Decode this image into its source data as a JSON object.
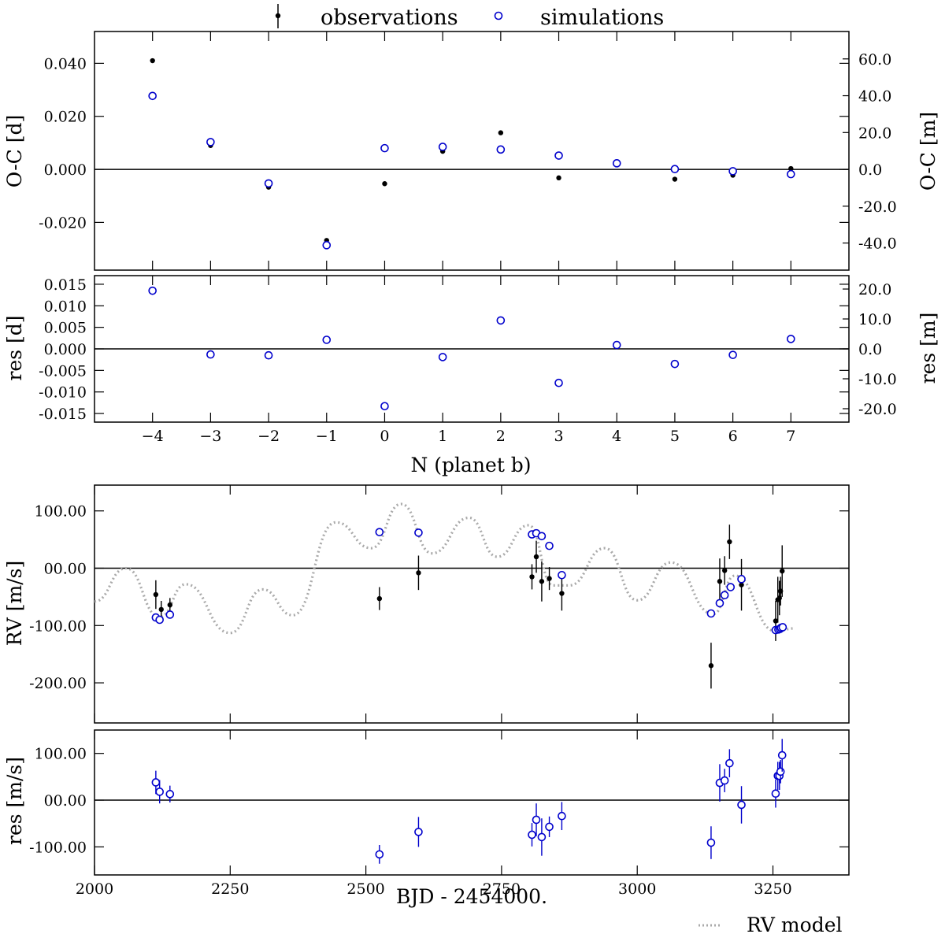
{
  "legend": {
    "observations": "observations",
    "simulations": "simulations",
    "rv_model": "RV model"
  },
  "colors": {
    "observations": "#000000",
    "simulations": "#0000cc",
    "model": "#aaaaaa"
  },
  "chart_data": [
    {
      "type": "scatter",
      "panel": "oc",
      "ylabel": "O-C [d]",
      "ylabel_right": "O-C [m]",
      "xlim": [
        -5,
        8
      ],
      "ylim": [
        -0.038,
        0.052
      ],
      "yticks": [
        -0.02,
        0.0,
        0.02,
        0.04
      ],
      "ytick_labels": [
        "-0.020",
        "0.000",
        "0.020",
        "0.040"
      ],
      "yticks_right": [
        -40,
        -20,
        0,
        20,
        40,
        60
      ],
      "ytick_right_labels": [
        "-40.0",
        "-20.0",
        "0.0",
        "20.0",
        "40.0",
        "60.0"
      ],
      "x": [
        -4,
        -3,
        -2,
        -1,
        0,
        1,
        2,
        3,
        4,
        5,
        6,
        7
      ],
      "series": [
        {
          "name": "observations",
          "values": [
            0.041,
            0.009,
            -0.0067,
            -0.0268,
            -0.0054,
            0.0068,
            0.0138,
            -0.0032,
            0.0027,
            -0.0037,
            -0.0022,
            0.0003
          ]
        },
        {
          "name": "simulations",
          "values": [
            0.0277,
            0.0103,
            -0.0053,
            -0.0286,
            0.008,
            0.0085,
            0.0075,
            0.0052,
            0.0023,
            0.0001,
            -0.0007,
            -0.0018
          ]
        }
      ]
    },
    {
      "type": "scatter",
      "panel": "oc_res",
      "ylabel": "res [d]",
      "ylabel_right": "res [m]",
      "xlabel": "N (planet b)",
      "xlim": [
        -5,
        8
      ],
      "ylim": [
        -0.017,
        0.017
      ],
      "xticks": [
        -4,
        -3,
        -2,
        -1,
        0,
        1,
        2,
        3,
        4,
        5,
        6,
        7
      ],
      "xtick_labels": [
        "−4",
        "−3",
        "−2",
        "−1",
        "0",
        "1",
        "2",
        "3",
        "4",
        "5",
        "6",
        "7"
      ],
      "yticks": [
        -0.015,
        -0.01,
        -0.005,
        0.0,
        0.005,
        0.01,
        0.015
      ],
      "ytick_labels": [
        "-0.015",
        "-0.010",
        "-0.005",
        "0.000",
        "0.005",
        "0.010",
        "0.015"
      ],
      "yticks_right": [
        -20,
        -10,
        0,
        10,
        20
      ],
      "ytick_right_labels": [
        "-20.0",
        "-10.0",
        "0.0",
        "10.0",
        "20.0"
      ],
      "x": [
        -4,
        -3,
        -2,
        -1,
        0,
        1,
        2,
        3,
        4,
        5,
        6,
        7
      ],
      "values": [
        0.0135,
        -0.0013,
        -0.0015,
        0.0021,
        -0.0133,
        -0.0019,
        0.0066,
        -0.0079,
        0.0009,
        -0.0035,
        -0.0014,
        0.0023
      ]
    },
    {
      "type": "scatter",
      "panel": "rv",
      "ylabel": "RV [m/s]",
      "xlim": [
        2000,
        3390
      ],
      "ylim": [
        -270,
        145
      ],
      "yticks": [
        -200,
        -100,
        0,
        100
      ],
      "ytick_labels": [
        "-200.00",
        "-100.00",
        "00.00",
        "100.00"
      ],
      "model": {
        "name": "RV model",
        "x": [
          2000,
          2058,
          2120,
          2168,
          2250,
          2310,
          2365,
          2445,
          2510,
          2565,
          2622,
          2690,
          2742,
          2800,
          2845,
          2875,
          2940,
          3000,
          3062,
          3140,
          3180,
          3255,
          3290
        ],
        "y": [
          -58,
          0,
          -85,
          -28,
          -113,
          -37,
          -82,
          80,
          35,
          112,
          26,
          88,
          20,
          75,
          -30,
          -30,
          35,
          -56,
          10,
          -80,
          -13,
          -110,
          -105
        ]
      },
      "observations": {
        "x": [
          2113,
          2123,
          2139,
          2525,
          2597,
          2806,
          2814,
          2824,
          2838,
          2861,
          3136,
          3152,
          3161,
          3170,
          3192,
          3255,
          3259,
          3262,
          3264,
          3267
        ],
        "y": [
          -46,
          -72,
          -64,
          -53,
          -8,
          -15,
          20,
          -23,
          -18,
          -44,
          -170,
          -23,
          -4,
          46,
          -29,
          -92,
          -55,
          -52,
          -40,
          -5
        ],
        "err": [
          25,
          15,
          12,
          20,
          30,
          22,
          28,
          35,
          20,
          30,
          40,
          40,
          25,
          30,
          45,
          35,
          40,
          30,
          25,
          45
        ]
      },
      "simulations": {
        "x": [
          2113,
          2120,
          2139,
          2525,
          2597,
          2806,
          2814,
          2824,
          2838,
          2861,
          3136,
          3152,
          3161,
          3172,
          3192,
          3255,
          3260,
          3263,
          3265,
          3268
        ],
        "y": [
          -86,
          -90,
          -81,
          63,
          62,
          59,
          61,
          56,
          39,
          -12,
          -79,
          -61,
          -47,
          -33,
          -19,
          -108,
          -107,
          -106,
          -104,
          -103
        ]
      }
    },
    {
      "type": "scatter",
      "panel": "rv_res",
      "ylabel": "res [m/s]",
      "xlabel": "BJD - 2454000.",
      "xlim": [
        2000,
        3390
      ],
      "ylim": [
        -160,
        150
      ],
      "xticks": [
        2000,
        2250,
        2500,
        2750,
        3000,
        3250
      ],
      "xtick_labels": [
        "2000",
        "2250",
        "2500",
        "2750",
        "3000",
        "3250"
      ],
      "yticks": [
        -100,
        0,
        100
      ],
      "ytick_labels": [
        "-100.00",
        "00.00",
        "100.00"
      ],
      "x": [
        2113,
        2120,
        2139,
        2525,
        2597,
        2806,
        2814,
        2824,
        2838,
        2861,
        3136,
        3152,
        3161,
        3170,
        3192,
        3255,
        3259,
        3262,
        3264,
        3267
      ],
      "values": [
        38,
        18,
        13,
        -116,
        -68,
        -74,
        -42,
        -79,
        -57,
        -34,
        -91,
        37,
        42,
        79,
        -10,
        14,
        52,
        52,
        61,
        96
      ],
      "err": [
        25,
        25,
        18,
        20,
        32,
        25,
        35,
        40,
        22,
        30,
        35,
        40,
        25,
        30,
        40,
        30,
        30,
        30,
        25,
        35
      ]
    }
  ]
}
